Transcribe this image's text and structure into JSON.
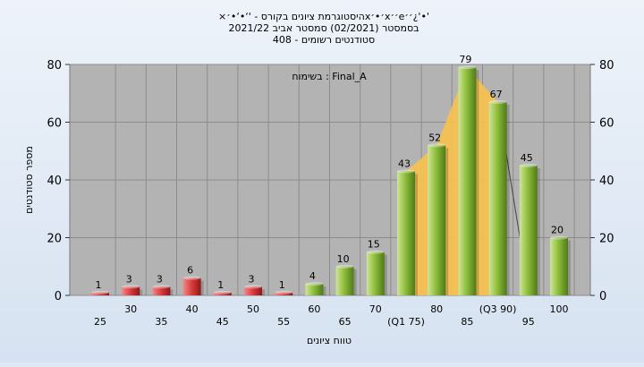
{
  "title_lines": [
    "×היסטוגרמת ציונים בקורס - '‘•‘•׳x׳•׳x׳׳e׳׳¿'•'",
    "בסמסטר  (02/2021)  סמסטר אביב 2021/22",
    "סטודנטים רשומים - 408"
  ],
  "chart_data": {
    "type": "bar",
    "legend_label": "בשימוח : Final_A",
    "xlabel": "טווח ציונים",
    "ylabel": "מספר סטודנטים",
    "ylim": [
      0,
      80
    ],
    "y_ticks": [
      0,
      20,
      40,
      60,
      80
    ],
    "grid": true,
    "categories": [
      "25",
      "30",
      "35",
      "40",
      "45",
      "50",
      "55",
      "60",
      "65",
      "70",
      "(Q1 75)",
      "80",
      "85",
      "(Q3 90)",
      "95",
      "100"
    ],
    "values": [
      1,
      3,
      3,
      6,
      1,
      3,
      1,
      4,
      10,
      15,
      43,
      52,
      79,
      67,
      45,
      20
    ],
    "highlight_region": {
      "from_category": "(Q1 75)",
      "to_category": "(Q3 90)",
      "color": "#f7c24c"
    },
    "colors": {
      "fail": "#d83a3a",
      "pass": "#8fbf3c",
      "plot_bg": "#b3b3b3"
    }
  }
}
